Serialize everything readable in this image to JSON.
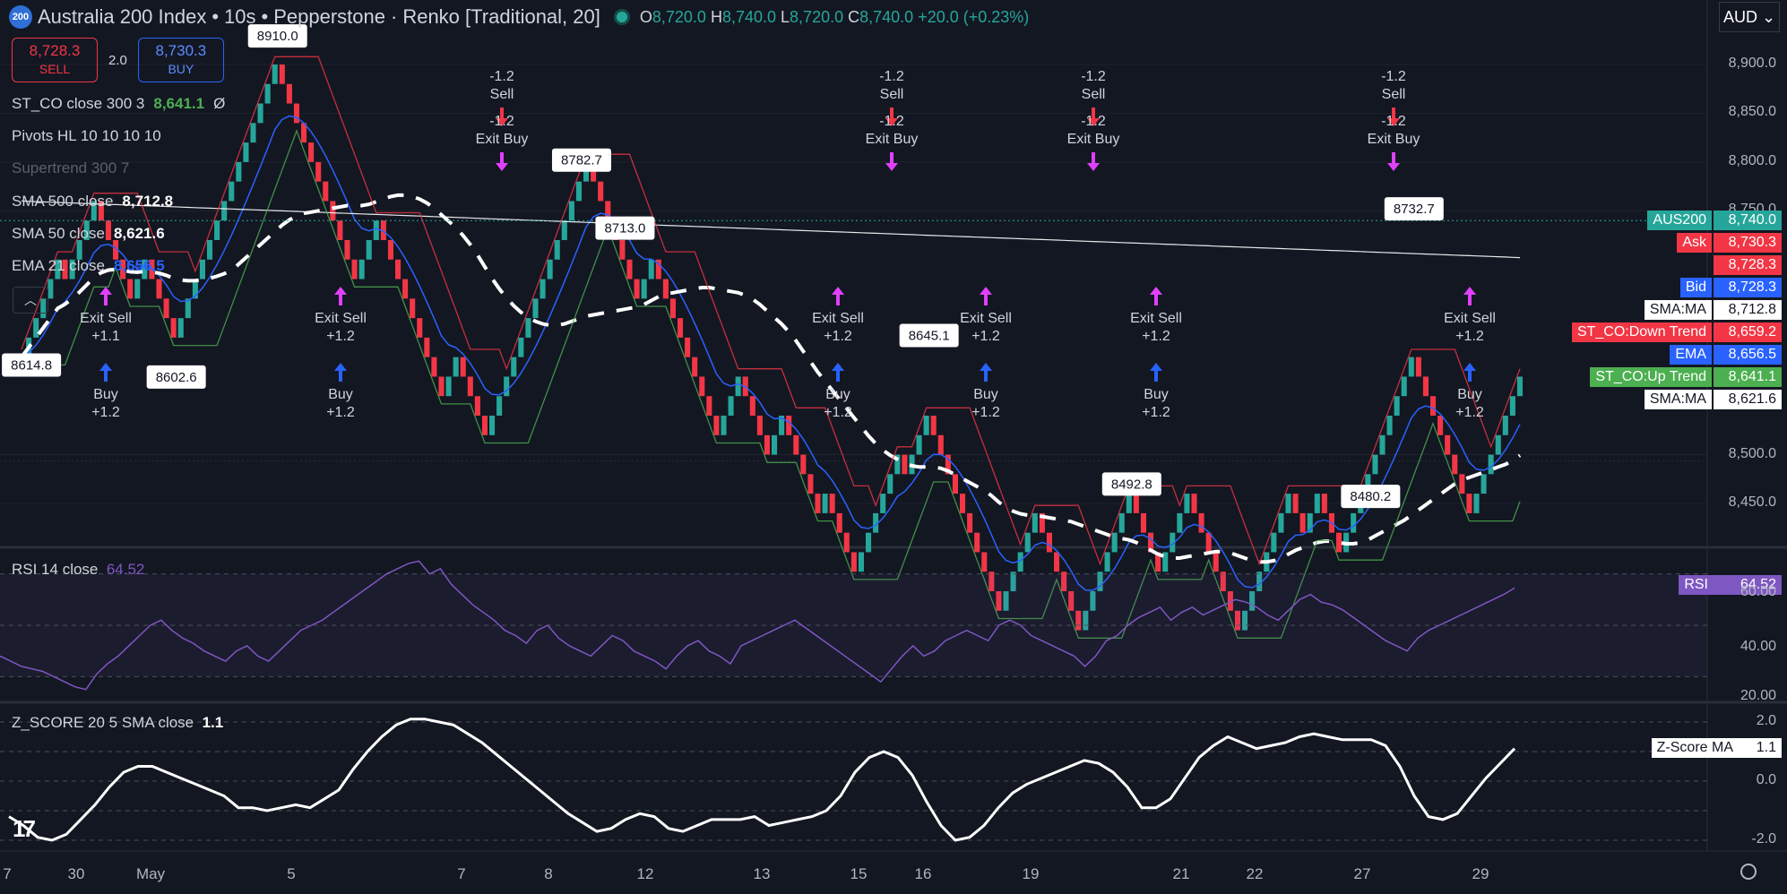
{
  "header": {
    "logo_text": "200",
    "symbol": "Australia 200 Index",
    "interval": "10s",
    "broker": "Pepperstone",
    "chart_style": "Renko [Traditional, 20]",
    "o_label": "O",
    "o": "8,720.0",
    "h_label": "H",
    "h": "8,740.0",
    "l_label": "L",
    "l": "8,720.0",
    "c_label": "C",
    "c": "8,740.0",
    "change": "+20.0 (+0.23%)",
    "currency": "AUD"
  },
  "trade": {
    "sell_price": "8,728.3",
    "sell_label": "SELL",
    "spread": "2.0",
    "buy_price": "8,730.3",
    "buy_label": "BUY"
  },
  "legend": {
    "st_co": {
      "name": "ST_CO close 300 3",
      "value": "8,641.1",
      "extra": "Ø"
    },
    "pivots": {
      "name": "Pivots HL 10 10 10 10"
    },
    "supertrend": {
      "name": "Supertrend 300 7"
    },
    "sma500": {
      "name": "SMA 500 close",
      "value": "8,712.8"
    },
    "sma50": {
      "name": "SMA 50 close",
      "value": "8,621.6"
    },
    "ema21": {
      "name": "EMA 21 close",
      "value": "8,656.5"
    }
  },
  "price_axis": {
    "ticks": [
      "8,900.0",
      "8,850.0",
      "8,800.0",
      "8,750.0",
      "8,500.0",
      "8,450.0"
    ]
  },
  "price_labels": [
    {
      "name": "AUS200",
      "price": "8,740.0",
      "bg": "#26a69a",
      "pbg": "#26a69a",
      "fg": "#ffffff",
      "y": 8740
    },
    {
      "name": "Ask",
      "price": "8,730.3",
      "bg": "#f23645",
      "pbg": "#f23645",
      "fg": "#ffffff",
      "y": 8730.3
    },
    {
      "name": "",
      "price": "8,728.3",
      "bg": "#f23645",
      "pbg": "#f23645",
      "fg": "#ffffff",
      "y": 8728.3
    },
    {
      "name": "Bid",
      "price": "8,728.3",
      "bg": "#2962ff",
      "pbg": "#2962ff",
      "fg": "#ffffff",
      "y": 8728.3
    },
    {
      "name": "SMA:MA",
      "price": "8,712.8",
      "bg": "#ffffff",
      "pbg": "#ffffff",
      "fg": "#131722",
      "y": 8712.8
    },
    {
      "name": "ST_CO:Down Trend",
      "price": "8,659.2",
      "bg": "#f23645",
      "pbg": "#f23645",
      "fg": "#ffffff",
      "y": 8659.2
    },
    {
      "name": "EMA",
      "price": "8,656.5",
      "bg": "#2962ff",
      "pbg": "#2962ff",
      "fg": "#ffffff",
      "y": 8656.5
    },
    {
      "name": "ST_CO:Up Trend",
      "price": "8,641.1",
      "bg": "#4caf50",
      "pbg": "#4caf50",
      "fg": "#ffffff",
      "y": 8641.1
    },
    {
      "name": "SMA:MA",
      "price": "8,621.6",
      "bg": "#ffffff",
      "pbg": "#ffffff",
      "fg": "#131722",
      "y": 8621.6
    }
  ],
  "rsi": {
    "title": "RSI 14 close",
    "value": "64.52",
    "label": "RSI",
    "ticks": [
      "60.00",
      "40.00",
      "20.00"
    ]
  },
  "zscore": {
    "title": "Z_SCORE 20 5 SMA close",
    "value": "1.1",
    "label": "Z-Score MA",
    "ticks": [
      "2.0",
      "0.0",
      "-2.0"
    ]
  },
  "x_axis": {
    "ticks": [
      "7",
      "30",
      "May",
      "5",
      "7",
      "8",
      "12",
      "13",
      "15",
      "16",
      "19",
      "21",
      "22",
      "27",
      "29"
    ]
  },
  "colors": {
    "bg": "#131722",
    "up": "#26a69a",
    "down": "#f23645",
    "ema": "#2962ff",
    "st_up": "#4caf50",
    "st_down": "#f23645",
    "rsi": "#7e57c2",
    "signal": "#e040fb"
  },
  "chart_data": [
    {
      "type": "renko",
      "box_size": 20,
      "start_price": 8580,
      "bricks": [
        1,
        1,
        1,
        1,
        1,
        1,
        -1,
        1,
        1,
        1,
        1,
        -1,
        -1,
        -1,
        -1,
        -1,
        1,
        1,
        -1,
        -1,
        -1,
        -1,
        1,
        1,
        1,
        1,
        1,
        1,
        1,
        1,
        1,
        1,
        1,
        1,
        1,
        1,
        -1,
        -1,
        -1,
        -1,
        -1,
        -1,
        -1,
        -1,
        -1,
        -1,
        -1,
        1,
        1,
        1,
        -1,
        -1,
        -1,
        -1,
        -1,
        -1,
        -1,
        -1,
        -1,
        1,
        1,
        -1,
        -1,
        -1,
        -1,
        1,
        1,
        1,
        1,
        1,
        1,
        1,
        1,
        1,
        1,
        1,
        1,
        1,
        1,
        -1,
        -1,
        -1,
        -1,
        -1,
        -1,
        -1,
        1,
        1,
        -1,
        -1,
        -1,
        -1,
        -1,
        -1,
        -1,
        -1,
        -1,
        1,
        1,
        1,
        -1,
        -1,
        -1,
        -1,
        1,
        1,
        -1,
        -1,
        -1,
        -1,
        -1,
        1,
        -1,
        -1,
        -1,
        -1,
        1,
        1,
        1,
        1,
        1,
        1,
        -1,
        1,
        1,
        1,
        -1,
        -1,
        -1,
        -1,
        -1,
        -1,
        -1,
        -1,
        -1,
        -1,
        1,
        1,
        1,
        1,
        1,
        -1,
        -1,
        -1,
        -1,
        -1,
        -1,
        1,
        1,
        1,
        1,
        1,
        1,
        1,
        -1,
        -1,
        -1,
        -1,
        1,
        1,
        1,
        1,
        -1,
        -1,
        -1,
        -1,
        -1,
        -1,
        -1,
        1,
        1,
        1,
        1,
        1,
        1,
        1,
        -1,
        -1,
        1,
        1,
        -1,
        -1,
        -1,
        1,
        1,
        1,
        1,
        1,
        1,
        1,
        1,
        1,
        1,
        -1,
        -1,
        -1,
        -1,
        -1,
        -1,
        -1,
        -1,
        1,
        1,
        1,
        1,
        1,
        1,
        1
      ],
      "last_close": 8740.0,
      "annotations": [
        {
          "text": "8614.8",
          "price": 8614.8
        },
        {
          "text": "8602.6",
          "price": 8602.6
        },
        {
          "text": "8910.0",
          "price": 8910.0
        },
        {
          "text": "8782.7",
          "price": 8782.7
        },
        {
          "text": "8713.0",
          "price": 8713.0
        },
        {
          "text": "8645.1",
          "price": 8645.1
        },
        {
          "text": "8492.8",
          "price": 8492.8
        },
        {
          "text": "8480.2",
          "price": 8480.2
        },
        {
          "text": "8732.7",
          "price": 8732.7
        }
      ],
      "signals": [
        {
          "text": "Exit Sell",
          "qty": "+1.1"
        },
        {
          "text": "Buy",
          "qty": "+1.2"
        },
        {
          "text": "Exit Sell",
          "qty": "+1.2"
        },
        {
          "text": "Buy",
          "qty": "+1.2"
        },
        {
          "text": "Sell",
          "qty": "-1.2"
        },
        {
          "text": "Exit Buy",
          "qty": "-1.2"
        },
        {
          "text": "Exit Sell",
          "qty": "+1.2"
        },
        {
          "text": "Buy",
          "qty": "+1.2"
        },
        {
          "text": "Sell",
          "qty": "-1.2"
        },
        {
          "text": "Exit Buy",
          "qty": "-1.2"
        },
        {
          "text": "Sell",
          "qty": "-1.2"
        },
        {
          "text": "Exit Buy",
          "qty": "-1.2"
        },
        {
          "text": "Exit Sell",
          "qty": "+1.2"
        },
        {
          "text": "Buy",
          "qty": "+1.2"
        },
        {
          "text": "Exit Sell",
          "qty": "+1.2"
        },
        {
          "text": "Buy",
          "qty": "+1.2"
        },
        {
          "text": "Sell",
          "qty": "-1.2"
        },
        {
          "text": "Exit Buy",
          "qty": "-1.2"
        },
        {
          "text": "Exit Sell",
          "qty": "+1.2"
        },
        {
          "text": "Buy",
          "qty": "+1.2"
        }
      ]
    },
    {
      "type": "line",
      "name": "RSI",
      "ylim": [
        20,
        80
      ],
      "values": [
        38,
        36,
        34,
        33,
        32,
        30,
        28,
        26,
        25,
        31,
        35,
        38,
        42,
        46,
        50,
        52,
        48,
        45,
        43,
        40,
        38,
        36,
        40,
        42,
        38,
        36,
        40,
        44,
        48,
        50,
        52,
        55,
        58,
        61,
        64,
        67,
        70,
        72,
        74,
        75,
        70,
        72,
        66,
        62,
        58,
        55,
        52,
        48,
        46,
        43,
        48,
        50,
        45,
        42,
        40,
        38,
        42,
        46,
        44,
        40,
        38,
        36,
        33,
        38,
        42,
        44,
        40,
        38,
        35,
        42,
        44,
        46,
        48,
        50,
        52,
        49,
        46,
        43,
        40,
        37,
        34,
        31,
        28,
        33,
        38,
        42,
        38,
        40,
        44,
        46,
        48,
        46,
        44,
        50,
        52,
        50,
        46,
        44,
        42,
        40,
        38,
        34,
        38,
        44,
        46,
        50,
        53,
        55,
        57,
        52,
        55,
        57,
        54,
        56,
        58,
        60,
        59,
        57,
        54,
        52,
        56,
        60,
        62,
        59,
        58,
        56,
        53,
        50,
        47,
        44,
        42,
        40,
        45,
        48,
        50,
        52,
        54,
        56,
        58,
        60,
        62,
        64.52
      ]
    },
    {
      "type": "line",
      "name": "Z-Score MA",
      "ylim": [
        -2.4,
        2.4
      ],
      "values": [
        -1.2,
        -1.5,
        -1.9,
        -2.0,
        -1.8,
        -1.3,
        -0.8,
        -0.2,
        0.3,
        0.5,
        0.5,
        0.3,
        0.1,
        -0.1,
        -0.3,
        -0.5,
        -0.9,
        -0.9,
        -1.0,
        -0.9,
        -0.8,
        -0.9,
        -0.6,
        -0.3,
        0.4,
        1.0,
        1.5,
        1.9,
        2.1,
        2.1,
        2.0,
        1.9,
        1.6,
        1.3,
        0.9,
        0.5,
        0.1,
        -0.3,
        -0.7,
        -1.1,
        -1.4,
        -1.7,
        -1.6,
        -1.3,
        -1.1,
        -1.2,
        -1.6,
        -1.7,
        -1.5,
        -1.3,
        -1.3,
        -1.3,
        -1.2,
        -1.5,
        -1.4,
        -1.3,
        -1.2,
        -1.0,
        -0.5,
        0.3,
        0.8,
        1.0,
        0.8,
        0.2,
        -0.7,
        -1.5,
        -2.0,
        -1.9,
        -1.5,
        -0.9,
        -0.4,
        -0.1,
        0.1,
        0.3,
        0.5,
        0.7,
        0.6,
        0.3,
        -0.2,
        -0.9,
        -0.9,
        -0.6,
        0.1,
        0.8,
        1.2,
        1.5,
        1.3,
        1.1,
        1.2,
        1.3,
        1.5,
        1.6,
        1.5,
        1.4,
        1.4,
        1.4,
        1.2,
        0.5,
        -0.5,
        -1.2,
        -1.3,
        -1.1,
        -0.5,
        0.1,
        0.6,
        1.1
      ]
    }
  ]
}
